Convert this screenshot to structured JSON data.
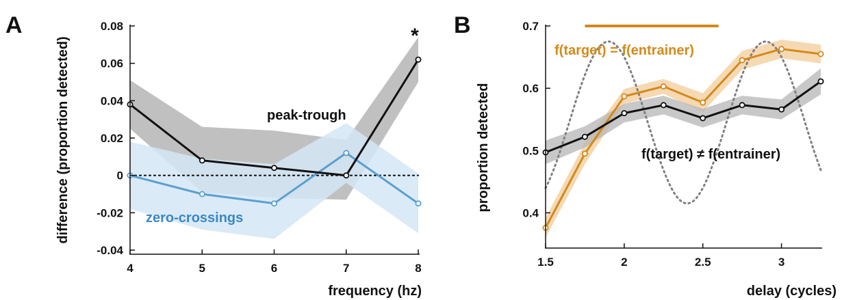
{
  "colors": {
    "black": "#111111",
    "blue": "#5a9fd0",
    "blue_text": "#3b87c7",
    "blue_band": "#d4e6f4",
    "gray_band": "#b5b5b5",
    "orange": "#d4891a",
    "orange_band": "#f4d5ab",
    "dotted": "#808080"
  },
  "chart_data": [
    {
      "panel_label": "A",
      "type": "line",
      "xlabel": "frequency (hz)",
      "ylabel": "difference (proportion detected)",
      "xlim": [
        4,
        8
      ],
      "ylim": [
        -0.04,
        0.08
      ],
      "xticks": [
        "4",
        "5",
        "6",
        "7",
        "8"
      ],
      "yticks": [
        "-0.04",
        "-0.02",
        "0",
        "0.02",
        "0.04",
        "0.06",
        "0.08"
      ],
      "reference_line": {
        "y": 0,
        "style": "dotted"
      },
      "x": [
        4,
        5,
        6,
        7,
        8
      ],
      "series": [
        {
          "name": "peak-trough",
          "color": "black",
          "values": [
            0.038,
            0.008,
            0.004,
            0.0,
            0.062
          ],
          "band_upper": [
            0.051,
            0.026,
            0.024,
            0.019,
            0.074
          ],
          "band_lower": [
            0.025,
            -0.009,
            -0.012,
            -0.013,
            0.05
          ]
        },
        {
          "name": "zero-crossings",
          "color": "blue",
          "values": [
            0.0,
            -0.01,
            -0.015,
            0.012,
            -0.015
          ],
          "band_upper": [
            0.018,
            0.009,
            0.006,
            0.028,
            0.001
          ],
          "band_lower": [
            -0.018,
            -0.029,
            -0.034,
            -0.004,
            -0.031
          ]
        }
      ],
      "annotations": [
        "*"
      ]
    },
    {
      "panel_label": "B",
      "type": "line",
      "xlabel": "delay (cycles)",
      "ylabel": "proportion detected",
      "xlim": [
        1.5,
        3.25
      ],
      "ylim": [
        0.35,
        0.7
      ],
      "xticks": [
        "1.5",
        "2",
        "2.5",
        "3"
      ],
      "yticks": [
        "0.4",
        "0.5",
        "0.6",
        "0.7"
      ],
      "x": [
        1.5,
        1.75,
        2.0,
        2.25,
        2.5,
        2.75,
        3.0,
        3.25
      ],
      "series": [
        {
          "name": "f(target) = f(entrainer)",
          "color": "orange",
          "values": [
            0.376,
            0.495,
            0.587,
            0.603,
            0.577,
            0.645,
            0.663,
            0.655
          ],
          "band_upper": [
            0.392,
            0.512,
            0.599,
            0.615,
            0.592,
            0.66,
            0.678,
            0.67
          ],
          "band_lower": [
            0.36,
            0.478,
            0.575,
            0.591,
            0.562,
            0.63,
            0.648,
            0.64
          ]
        },
        {
          "name": "f(target) ≠ f(entrainer)",
          "color": "black",
          "values": [
            0.497,
            0.522,
            0.56,
            0.573,
            0.552,
            0.573,
            0.566,
            0.611
          ],
          "band_upper": [
            0.516,
            0.539,
            0.575,
            0.588,
            0.567,
            0.588,
            0.582,
            0.632
          ],
          "band_lower": [
            0.478,
            0.505,
            0.545,
            0.558,
            0.537,
            0.558,
            0.55,
            0.59
          ]
        }
      ],
      "reference_curve": {
        "style": "dotted",
        "period": 1.0,
        "peak_at": 1.9,
        "max": 0.675,
        "min": 0.415,
        "x_range": [
          1.5,
          3.25
        ]
      },
      "bar": {
        "x_start": 1.75,
        "x_end": 2.6,
        "y": 0.7
      }
    }
  ]
}
